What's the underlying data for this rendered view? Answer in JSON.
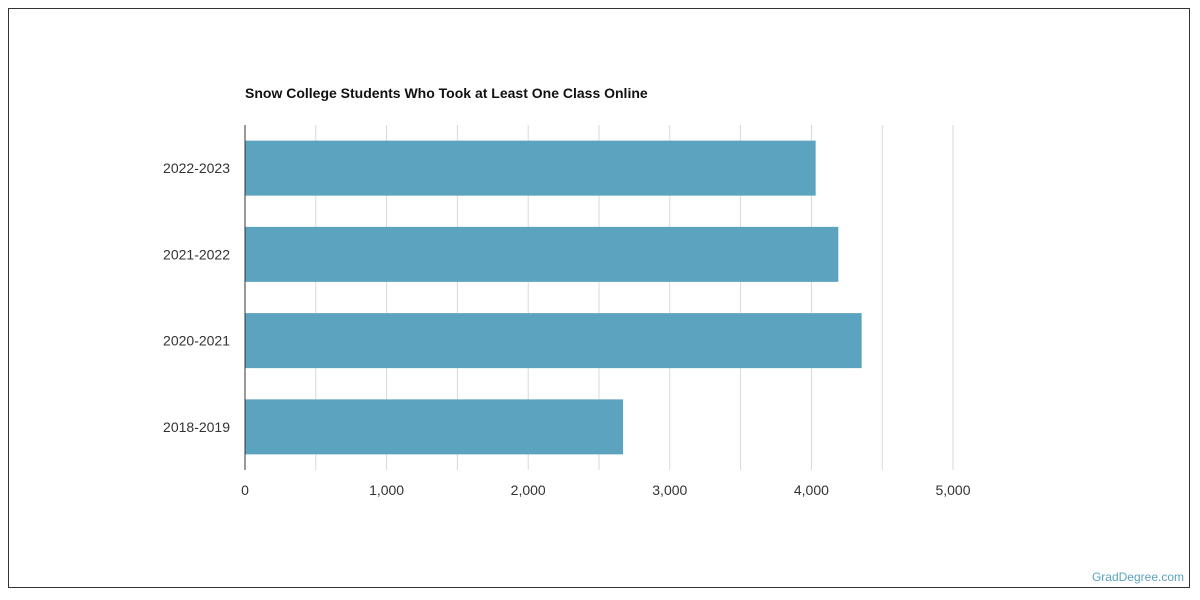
{
  "chart_data": {
    "type": "bar",
    "orientation": "horizontal",
    "title": "Snow College Students Who Took at Least One Class Online",
    "categories": [
      "2022-2023",
      "2021-2022",
      "2020-2021",
      "2018-2019"
    ],
    "values": [
      4030,
      4190,
      4355,
      2670
    ],
    "xlim": [
      0,
      5000
    ],
    "x_ticks": [
      0,
      1000,
      2000,
      3000,
      4000,
      5000
    ],
    "x_tick_labels": [
      "0",
      "1,000",
      "2,000",
      "3,000",
      "4,000",
      "5,000"
    ],
    "xlabel": "",
    "ylabel": "",
    "grid": true,
    "bar_color": "#5ba3bf",
    "grid_color": "#d9d9d9",
    "axis_color": "#333333"
  },
  "footer": {
    "credit": "GradDegree.com"
  }
}
